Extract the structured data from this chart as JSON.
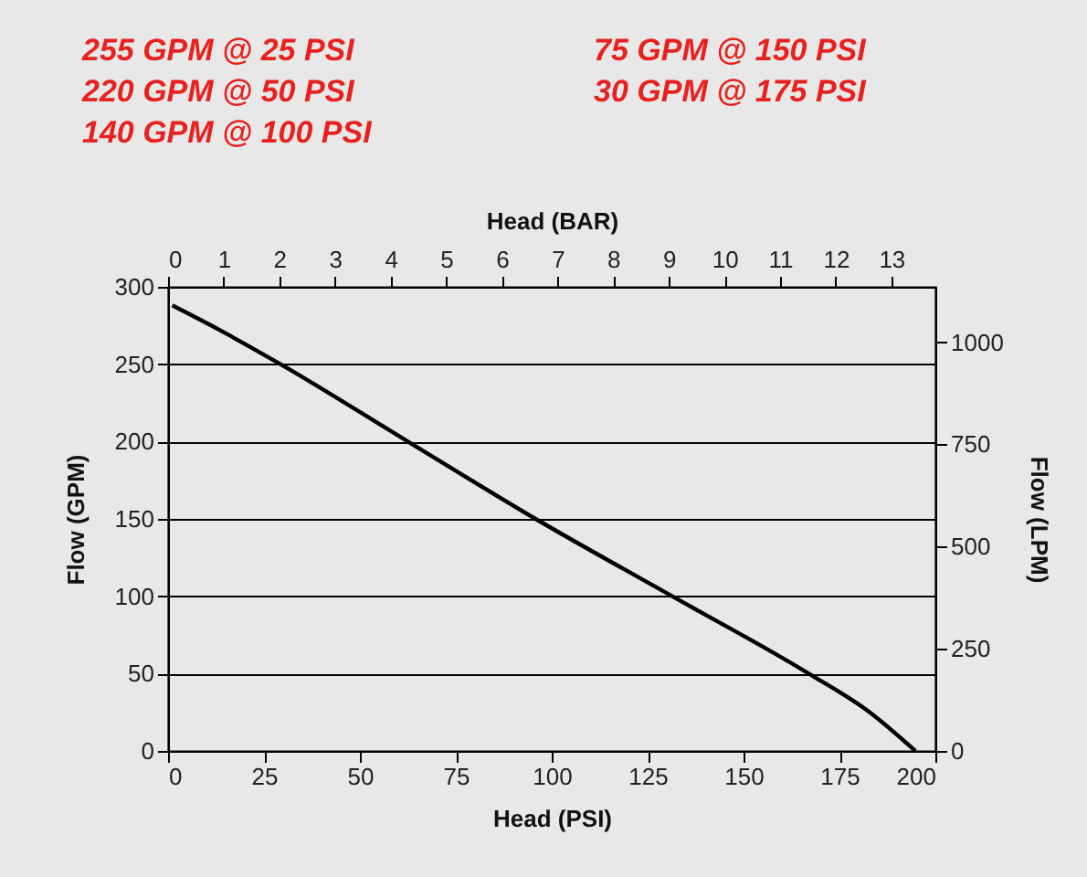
{
  "chart_data": {
    "type": "line",
    "annotations": [
      "255 GPM @ 25 PSI",
      "220 GPM @ 50 PSI",
      "140 GPM @ 100 PSI",
      "75 GPM @ 150 PSI",
      "30 GPM @ 175 PSI"
    ],
    "xlabel": "Head (PSI)",
    "ylabel": "Flow (GPM)",
    "x2label": "Head (BAR)",
    "y2label": "Flow (LPM)",
    "series": [
      {
        "color": "#000000",
        "x": [
          1.1,
          13.5,
          29.3,
          62.5,
          95.8,
          131.4,
          167,
          182.9,
          194.8
        ],
        "values": [
          288,
          272,
          250,
          200,
          150,
          100,
          50,
          25,
          0
        ]
      }
    ],
    "xlim": [
      0,
      200
    ],
    "xticks": [
      0,
      25,
      50,
      75,
      100,
      125,
      150,
      175,
      200
    ],
    "ylim": [
      0,
      300
    ],
    "yticks": [
      0,
      50,
      100,
      150,
      200,
      250,
      300
    ],
    "x2lim": [
      0,
      13.79
    ],
    "x2ticks": [
      0,
      1,
      2,
      3,
      4,
      5,
      6,
      7,
      8,
      9,
      10,
      11,
      12,
      13
    ],
    "y2lim": [
      0,
      1135.6
    ],
    "y2ticks": [
      0,
      250,
      500,
      750,
      1000
    ],
    "grid": "y",
    "marker": "none",
    "line_style": "solid"
  }
}
